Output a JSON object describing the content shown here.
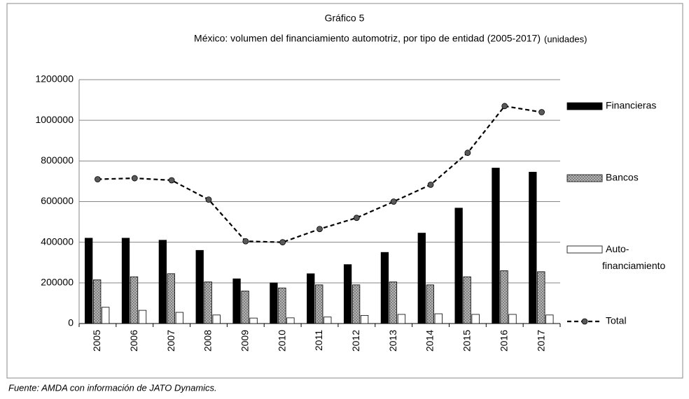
{
  "chart_data": {
    "type": "bar",
    "title": "Gráfico 5",
    "subtitle": "México: volumen del financiamiento automotriz, por tipo de entidad (2005-2017)",
    "unit": "(unidades)",
    "source": "Fuente: AMDA con información de JATO Dynamics.",
    "categories": [
      "2005",
      "2006",
      "2007",
      "2008",
      "2009",
      "2010",
      "2011",
      "2012",
      "2013",
      "2014",
      "2015",
      "2016",
      "2017"
    ],
    "series": [
      {
        "name": "Financieras",
        "color": "#000000",
        "values": [
          420000,
          420000,
          410000,
          360000,
          220000,
          200000,
          245000,
          290000,
          350000,
          445000,
          568000,
          765000,
          745000
        ]
      },
      {
        "name": "Bancos",
        "color": "#808080",
        "values": [
          215000,
          230000,
          245000,
          205000,
          160000,
          175000,
          190000,
          190000,
          205000,
          190000,
          230000,
          260000,
          255000
        ]
      },
      {
        "name": "Auto-financiamiento",
        "color": "#ffffff",
        "values": [
          80000,
          65000,
          55000,
          42000,
          27000,
          28000,
          32000,
          40000,
          45000,
          48000,
          45000,
          45000,
          42000
        ]
      },
      {
        "name": "Total",
        "type": "line",
        "color": "#000000",
        "values": [
          710000,
          715000,
          705000,
          610000,
          405000,
          400000,
          465000,
          520000,
          600000,
          683000,
          840000,
          1070000,
          1040000
        ]
      }
    ],
    "ylim": [
      0,
      1200000
    ],
    "yticks": [
      0,
      200000,
      400000,
      600000,
      800000,
      1000000,
      1200000
    ],
    "grid": true,
    "legend": "right"
  }
}
